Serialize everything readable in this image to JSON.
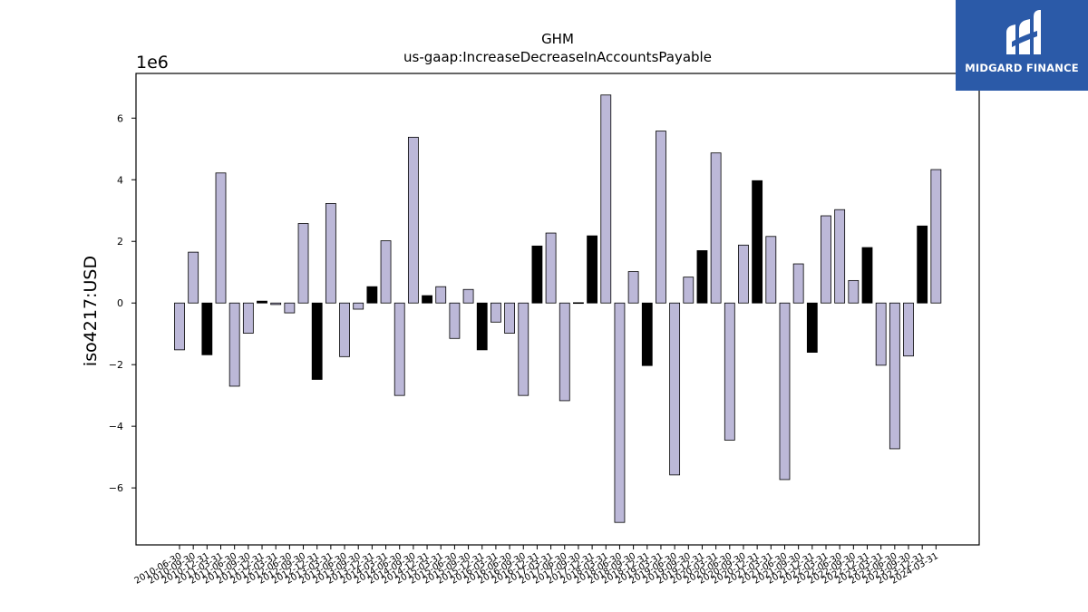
{
  "chart_data": {
    "type": "bar",
    "title": "GHM",
    "subtitle": "us-gaap:IncreaseDecreaseInAccountsPayable",
    "ylabel": "iso4217:USD",
    "xlabel": "",
    "y_offset_label": "1e6",
    "ylim": [
      -7.85,
      7.45
    ],
    "yticks": [
      -6,
      -4,
      -2,
      0,
      2,
      4,
      6
    ],
    "grid": false,
    "colors": {
      "light": "#bcb8d8",
      "dark": "#000000",
      "edge": "#000000"
    },
    "categories": [
      "2010-06-30",
      "2010-09-30",
      "2010-12-31",
      "2011-03-31",
      "2011-06-30",
      "2011-09-30",
      "2011-12-31",
      "2012-03-31",
      "2012-06-30",
      "2012-09-30",
      "2012-12-31",
      "2013-03-31",
      "2013-06-30",
      "2013-09-30",
      "2013-12-31",
      "2014-03-31",
      "2014-06-30",
      "2014-09-30",
      "2014-12-31",
      "2015-03-31",
      "2015-06-30",
      "2015-09-30",
      "2015-12-31",
      "2016-03-31",
      "2016-06-30",
      "2016-09-30",
      "2016-12-31",
      "2017-03-31",
      "2017-06-30",
      "2017-09-30",
      "2017-12-31",
      "2018-03-31",
      "2018-06-30",
      "2018-09-30",
      "2018-12-31",
      "2019-03-31",
      "2019-06-30",
      "2019-09-30",
      "2019-12-31",
      "2020-03-31",
      "2020-06-30",
      "2020-09-30",
      "2020-12-31",
      "2021-03-31",
      "2021-06-30",
      "2021-09-30",
      "2021-12-31",
      "2022-03-31",
      "2022-06-30",
      "2022-09-30",
      "2022-12-31",
      "2023-03-31",
      "2023-06-30",
      "2023-09-30",
      "2023-12-31",
      "2024-03-31"
    ],
    "values": [
      -1.52,
      1.65,
      -1.68,
      4.22,
      -2.7,
      -0.98,
      0.06,
      -0.05,
      -0.32,
      2.58,
      -2.48,
      3.23,
      -1.74,
      -0.2,
      0.53,
      2.02,
      -3.0,
      5.38,
      0.24,
      0.53,
      -1.15,
      0.44,
      -1.52,
      -0.62,
      -0.98,
      -3.0,
      1.85,
      2.27,
      -3.17,
      0.01,
      2.18,
      6.75,
      -7.12,
      1.02,
      -2.03,
      5.58,
      -5.58,
      0.84,
      1.7,
      4.87,
      -4.45,
      1.88,
      3.97,
      2.16,
      -5.73,
      1.27,
      -1.6,
      2.83,
      3.03,
      0.73,
      1.8,
      -2.02,
      -4.73,
      -1.72,
      2.5,
      4.33
    ],
    "dark_indices": [
      2,
      6,
      10,
      14,
      18,
      22,
      26,
      30,
      34,
      38,
      42,
      46,
      50,
      54
    ]
  },
  "logo": {
    "text": "MIDGARD FINANCE",
    "icon": "midgard-logo-icon",
    "background": "#2b5aa8"
  }
}
